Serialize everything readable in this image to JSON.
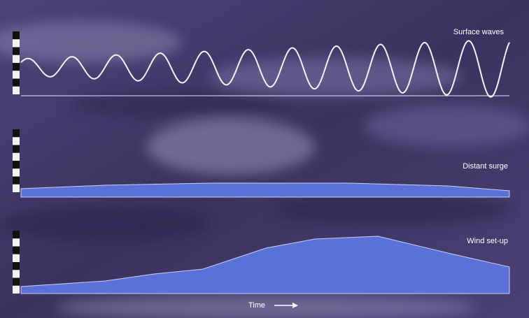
{
  "panels": [
    {
      "label": "Surface waves"
    },
    {
      "label": "Distant surge"
    },
    {
      "label": "Wind set-up"
    }
  ],
  "axis": {
    "label": "Time"
  }
}
